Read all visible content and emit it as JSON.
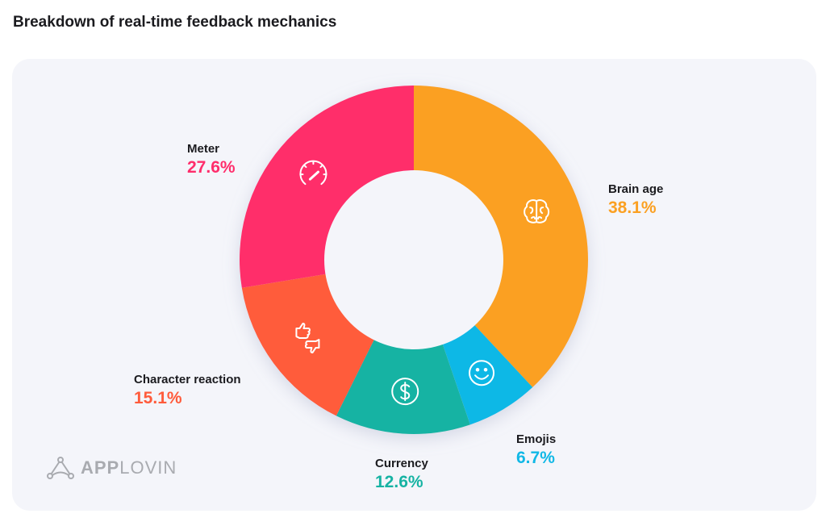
{
  "chart_data": {
    "type": "pie",
    "donut": true,
    "title": "Breakdown of real-time feedback mechanics",
    "slices": [
      {
        "label": "Brain age",
        "value": 38.1,
        "display": "38.1%",
        "color": "#FBA022",
        "icon": "brain-icon"
      },
      {
        "label": "Emojis",
        "value": 6.7,
        "display": "6.7%",
        "color": "#11B8E6",
        "icon": "smiley-icon"
      },
      {
        "label": "Currency",
        "value": 12.6,
        "display": "12.6%",
        "color": "#16B3A3",
        "icon": "dollar-icon"
      },
      {
        "label": "Character reaction",
        "value": 15.1,
        "display": "15.1%",
        "color": "#FF5B3B",
        "icon": "thumbs-icon"
      },
      {
        "label": "Meter",
        "value": 27.6,
        "display": "27.6%",
        "color": "#FF2D6B",
        "icon": "speedometer-icon"
      }
    ]
  },
  "brand": {
    "part1": "APP",
    "part2": "LOVIN"
  }
}
